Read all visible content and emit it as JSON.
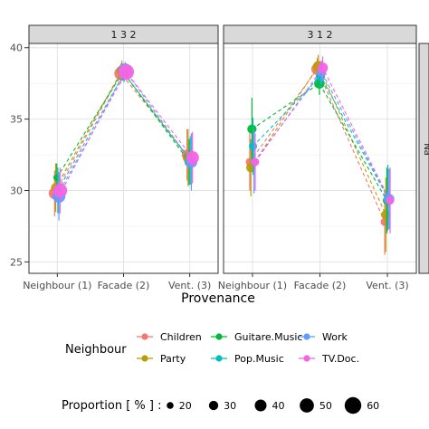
{
  "chart_data": {
    "type": "line",
    "xlabel": "Provenance",
    "ylim": [
      24.2,
      40.3
    ],
    "y_ticks": [
      25,
      30,
      35,
      40
    ],
    "categories": [
      "Neighbour (1)",
      "Facade (2)",
      "Vent. (3)"
    ],
    "right_strip_label": "Na",
    "panels": [
      {
        "label": "1 3 2",
        "series": [
          {
            "name": "Children",
            "values": [
              29.8,
              38.2,
              32.5
            ],
            "err": [
              1.6,
              0.7,
              1.8
            ],
            "size": [
              40,
              45,
              35
            ]
          },
          {
            "name": "Party",
            "values": [
              30.2,
              38.4,
              32.3
            ],
            "err": [
              1.7,
              0.7,
              2.0
            ],
            "size": [
              30,
              35,
              35
            ]
          },
          {
            "name": "Guitare.Music",
            "values": [
              30.9,
              38.3,
              32.0
            ],
            "err": [
              1.0,
              0.6,
              1.6
            ],
            "size": [
              20,
              30,
              30
            ]
          },
          {
            "name": "Pop.Music",
            "values": [
              30.0,
              38.2,
              32.1
            ],
            "err": [
              1.6,
              0.6,
              1.7
            ],
            "size": [
              25,
              30,
              35
            ]
          },
          {
            "name": "Work",
            "values": [
              29.6,
              38.4,
              32.0
            ],
            "err": [
              1.7,
              0.6,
              2.0
            ],
            "size": [
              45,
              50,
              40
            ]
          },
          {
            "name": "TV.Doc.",
            "values": [
              30.0,
              38.3,
              32.3
            ],
            "err": [
              1.6,
              0.6,
              1.8
            ],
            "size": [
              50,
              55,
              45
            ]
          }
        ]
      },
      {
        "label": "3 1 2",
        "series": [
          {
            "name": "Children",
            "values": [
              32.0,
              38.5,
              27.8
            ],
            "err": [
              2.0,
              0.8,
              2.3
            ],
            "size": [
              25,
              40,
              25
            ]
          },
          {
            "name": "Party",
            "values": [
              31.6,
              38.7,
              28.3
            ],
            "err": [
              2.0,
              0.8,
              2.6
            ],
            "size": [
              30,
              35,
              30
            ]
          },
          {
            "name": "Guitare.Music",
            "values": [
              34.3,
              37.5,
              29.3
            ],
            "err": [
              2.2,
              0.8,
              2.3
            ],
            "size": [
              30,
              35,
              25
            ]
          },
          {
            "name": "Pop.Music",
            "values": [
              33.1,
              38.0,
              29.5
            ],
            "err": [
              2.0,
              0.8,
              2.3
            ],
            "size": [
              25,
              30,
              25
            ]
          },
          {
            "name": "Work",
            "values": [
              32.0,
              38.3,
              29.4
            ],
            "err": [
              2.2,
              0.8,
              2.1
            ],
            "size": [
              20,
              30,
              35
            ]
          },
          {
            "name": "TV.Doc.",
            "values": [
              32.0,
              38.6,
              29.3
            ],
            "err": [
              2.0,
              0.8,
              2.3
            ],
            "size": [
              25,
              35,
              25
            ]
          }
        ]
      }
    ],
    "legend": {
      "color_title": "Neighbour",
      "size_title": "Proportion [ % ] :",
      "size_values": [
        20,
        30,
        40,
        50,
        60
      ],
      "size_labels": [
        "20",
        "30",
        "40",
        "50",
        "60"
      ],
      "placement": "bottom"
    },
    "colors": {
      "Children": "#F8766D",
      "Party": "#B79F00",
      "Guitare.Music": "#00BA38",
      "Pop.Music": "#00BFC4",
      "Work": "#619CFF",
      "TV.Doc.": "#F564E3"
    },
    "grid": true
  }
}
